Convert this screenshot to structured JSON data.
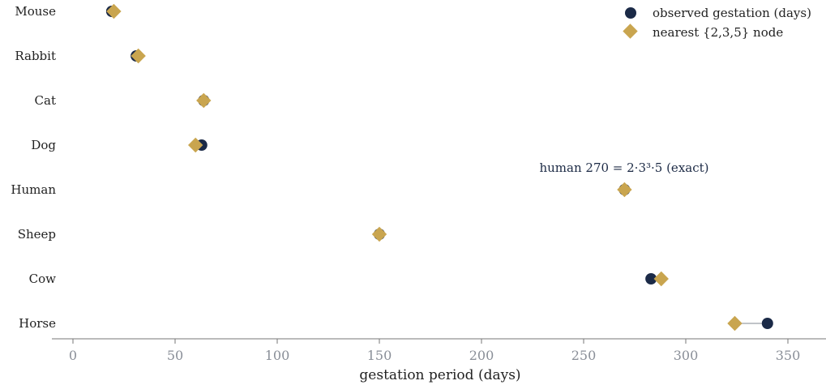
{
  "chart_data": {
    "type": "scatter",
    "xlabel": "gestation period  (days)",
    "xlim": [
      -10,
      368
    ],
    "xticks": [
      0,
      50,
      100,
      150,
      200,
      250,
      300,
      350
    ],
    "categories": [
      "Mouse",
      "Rabbit",
      "Cat",
      "Dog",
      "Human",
      "Sheep",
      "Cow",
      "Horse"
    ],
    "series": [
      {
        "name": "observed gestation (days)",
        "marker": "circle",
        "color": "#1b2a47",
        "values": [
          19,
          31,
          64,
          63,
          270,
          150,
          283,
          340
        ]
      },
      {
        "name": "nearest {2,3,5} node",
        "marker": "diamond",
        "color": "#c9a54f",
        "values": [
          20,
          32,
          64,
          60,
          270,
          150,
          288,
          324
        ]
      }
    ],
    "legend_position": "top-right",
    "grid": false,
    "annotations": [
      {
        "text": "human 270 = 2·3³·5  (exact)",
        "category": "Human"
      }
    ]
  }
}
